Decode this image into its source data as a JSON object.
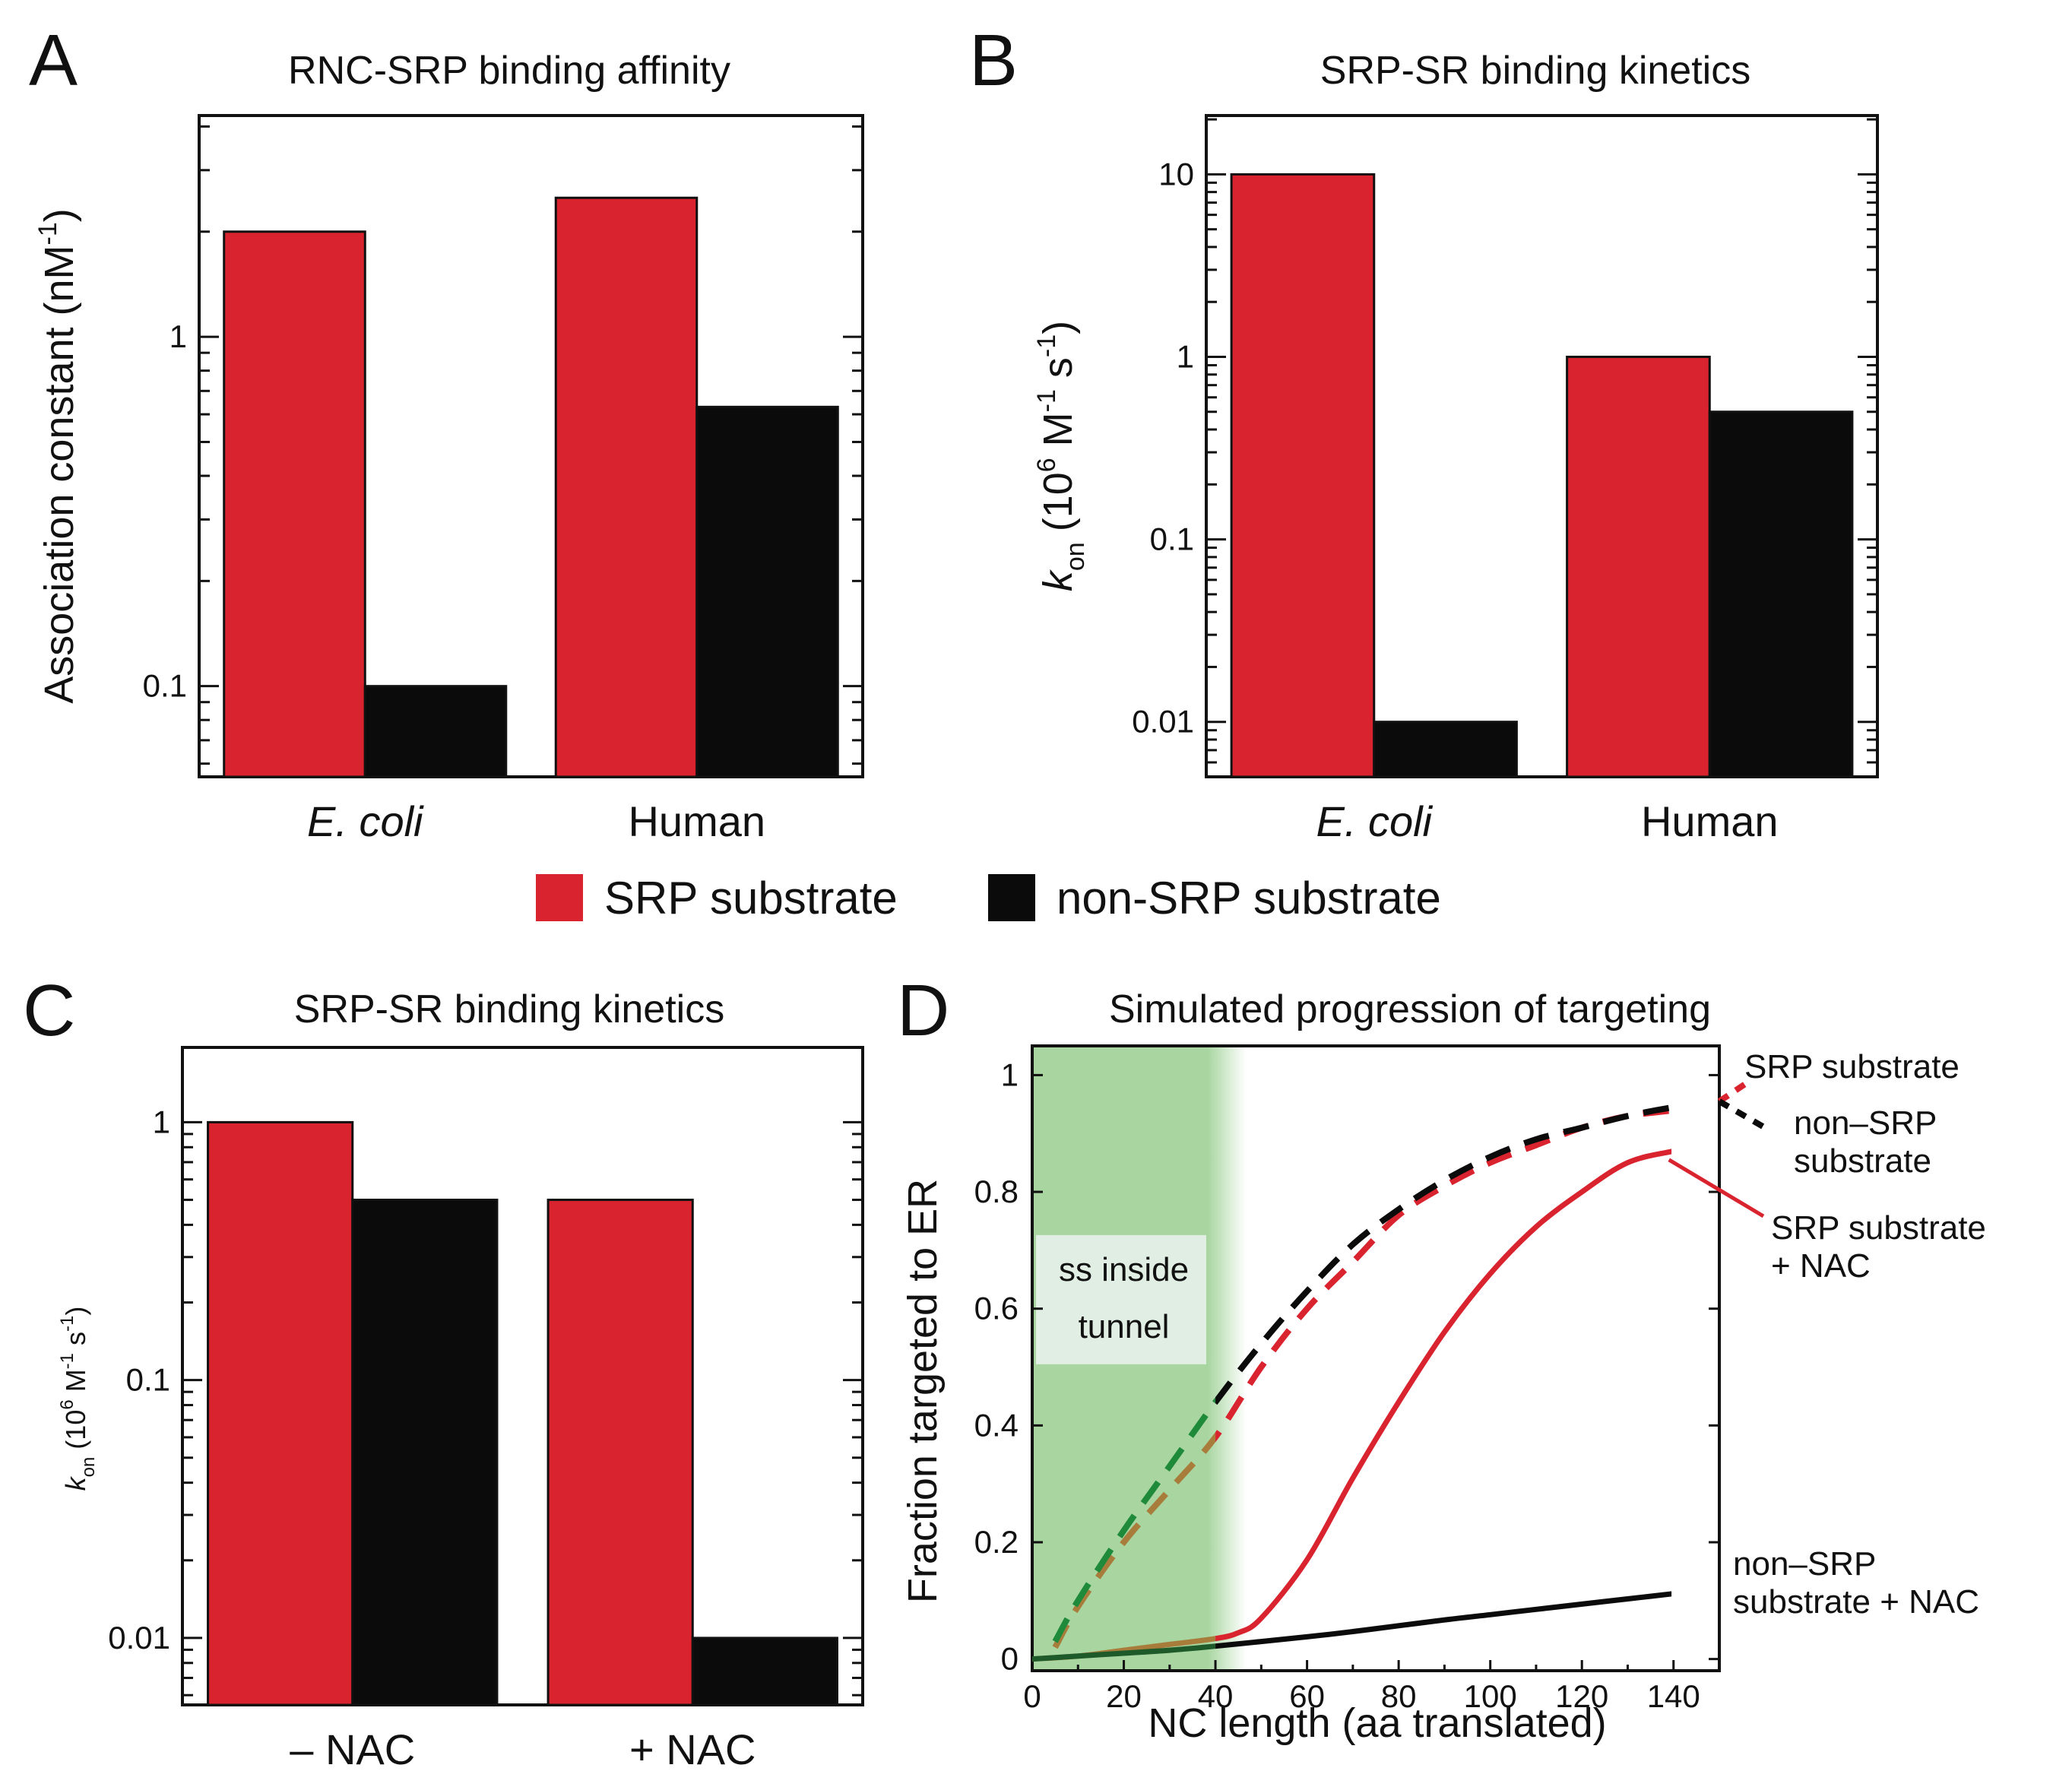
{
  "colors": {
    "srp": "#d9232e",
    "non_srp": "#0b0b0b",
    "tunnel_shade": "#a8d5a0",
    "srp_dashed_in_tunnel": "#a87d3c",
    "non_srp_dashed_in_tunnel": "#1f8a3a"
  },
  "legend": {
    "srp": "SRP substrate",
    "non_srp": "non-SRP substrate"
  },
  "chart_data": [
    {
      "panel": "A",
      "type": "bar",
      "title": "RNC-SRP binding affinity",
      "ylabel": "Association constant (nM",
      "ylabel_sup": "-1",
      "ylabel_end": ")",
      "yscale": "log",
      "ylim": [
        0.055,
        4.3
      ],
      "yticks": [
        {
          "v": 0.1,
          "label": "0.1"
        },
        {
          "v": 1,
          "label": "1"
        }
      ],
      "categories": [
        "E. coli",
        "Human"
      ],
      "category_italic": [
        true,
        false
      ],
      "series": [
        {
          "key": "srp",
          "values": [
            2.0,
            2.5
          ]
        },
        {
          "key": "non_srp",
          "values": [
            0.1,
            0.63
          ]
        }
      ]
    },
    {
      "panel": "B",
      "type": "bar",
      "title": "SRP-SR binding kinetics",
      "ylabel": "k",
      "ylabel_sub": "on",
      "ylabel_rest": "(10",
      "ylabel_sup1": "6",
      "ylabel_mid": " M",
      "ylabel_sup2": "-1",
      "ylabel_s": " s",
      "ylabel_sup3": "-1",
      "ylabel_end": ")",
      "yscale": "log",
      "ylim": [
        0.005,
        21
      ],
      "yticks": [
        {
          "v": 0.01,
          "label": "0.01"
        },
        {
          "v": 0.1,
          "label": "0.1"
        },
        {
          "v": 1,
          "label": "1"
        },
        {
          "v": 10,
          "label": "10"
        }
      ],
      "categories": [
        "E. coli",
        "Human"
      ],
      "category_italic": [
        true,
        false
      ],
      "series": [
        {
          "key": "srp",
          "values": [
            10,
            1.0
          ]
        },
        {
          "key": "non_srp",
          "values": [
            0.01,
            0.5
          ]
        }
      ]
    },
    {
      "panel": "C",
      "type": "bar",
      "title": "SRP-SR binding kinetics",
      "ylabel": "k",
      "ylabel_sub": "on",
      "ylabel_rest": "(10",
      "ylabel_sup1": "6",
      "ylabel_mid": " M",
      "ylabel_sup2": "-1",
      "ylabel_s": " s",
      "ylabel_sup3": "-1",
      "ylabel_end": ")",
      "yscale": "log",
      "ylim": [
        0.0055,
        1.95
      ],
      "yticks": [
        {
          "v": 0.01,
          "label": "0.01"
        },
        {
          "v": 0.1,
          "label": "0.1"
        },
        {
          "v": 1,
          "label": "1"
        }
      ],
      "categories": [
        "– NAC",
        "+ NAC"
      ],
      "category_italic": [
        false,
        false
      ],
      "series": [
        {
          "key": "srp",
          "values": [
            1.0,
            0.5
          ]
        },
        {
          "key": "non_srp",
          "values": [
            0.5,
            0.01
          ]
        }
      ]
    },
    {
      "panel": "D",
      "type": "line",
      "title": "Simulated progression of targeting",
      "xlabel": "NC length (aa translated)",
      "ylabel": "Fraction targeted to ER",
      "xlim": [
        0,
        150
      ],
      "ylim": [
        -0.02,
        1.05
      ],
      "xticks": [
        0,
        20,
        40,
        60,
        80,
        100,
        120,
        140
      ],
      "yticks": [
        {
          "v": 0,
          "label": "0"
        },
        {
          "v": 0.2,
          "label": "0.2"
        },
        {
          "v": 0.4,
          "label": "0.4"
        },
        {
          "v": 0.6,
          "label": "0.6"
        },
        {
          "v": 0.8,
          "label": "0.8"
        },
        {
          "v": 1,
          "label": "1"
        }
      ],
      "shaded_region": {
        "x": [
          0,
          40
        ],
        "label_line1": "ss inside",
        "label_line2": "tunnel"
      },
      "series": [
        {
          "key": "srp_dashed",
          "name": "SRP substrate",
          "color_key": "srp",
          "style": "dashed",
          "x": [
            5,
            10,
            20,
            30,
            40,
            50,
            60,
            70,
            80,
            90,
            100,
            110,
            120,
            130,
            140,
            150
          ],
          "y": [
            0.02,
            0.09,
            0.2,
            0.29,
            0.38,
            0.5,
            0.6,
            0.68,
            0.76,
            0.81,
            0.85,
            0.88,
            0.91,
            0.93,
            0.94,
            0.955
          ]
        },
        {
          "key": "non_srp_dashed",
          "name": "non–SRP\nsubstrate",
          "color_key": "non_srp",
          "style": "dashed",
          "x": [
            5,
            10,
            20,
            30,
            40,
            50,
            60,
            70,
            80,
            90,
            100,
            110,
            120,
            130,
            140,
            150
          ],
          "y": [
            0.03,
            0.1,
            0.22,
            0.33,
            0.44,
            0.54,
            0.63,
            0.71,
            0.77,
            0.82,
            0.86,
            0.89,
            0.91,
            0.93,
            0.945,
            0.955
          ]
        },
        {
          "key": "srp_nac",
          "name": "SRP substrate\n+ NAC",
          "color_key": "srp",
          "style": "solid",
          "x": [
            0,
            10,
            20,
            30,
            40,
            45,
            50,
            60,
            70,
            80,
            90,
            100,
            110,
            120,
            130,
            140,
            150
          ],
          "y": [
            0.0,
            0.005,
            0.015,
            0.025,
            0.035,
            0.045,
            0.07,
            0.17,
            0.31,
            0.44,
            0.56,
            0.66,
            0.74,
            0.8,
            0.85,
            0.87,
            0.885
          ]
        },
        {
          "key": "non_srp_nac",
          "name": "non–SRP\nsubstrate + NAC",
          "color_key": "non_srp",
          "style": "solid",
          "x": [
            0,
            10,
            20,
            30,
            40,
            50,
            60,
            70,
            80,
            90,
            100,
            110,
            120,
            130,
            140,
            150
          ],
          "y": [
            0.0,
            0.005,
            0.01,
            0.015,
            0.022,
            0.03,
            0.038,
            0.047,
            0.057,
            0.067,
            0.076,
            0.085,
            0.094,
            0.103,
            0.112,
            0.122
          ]
        }
      ]
    }
  ]
}
